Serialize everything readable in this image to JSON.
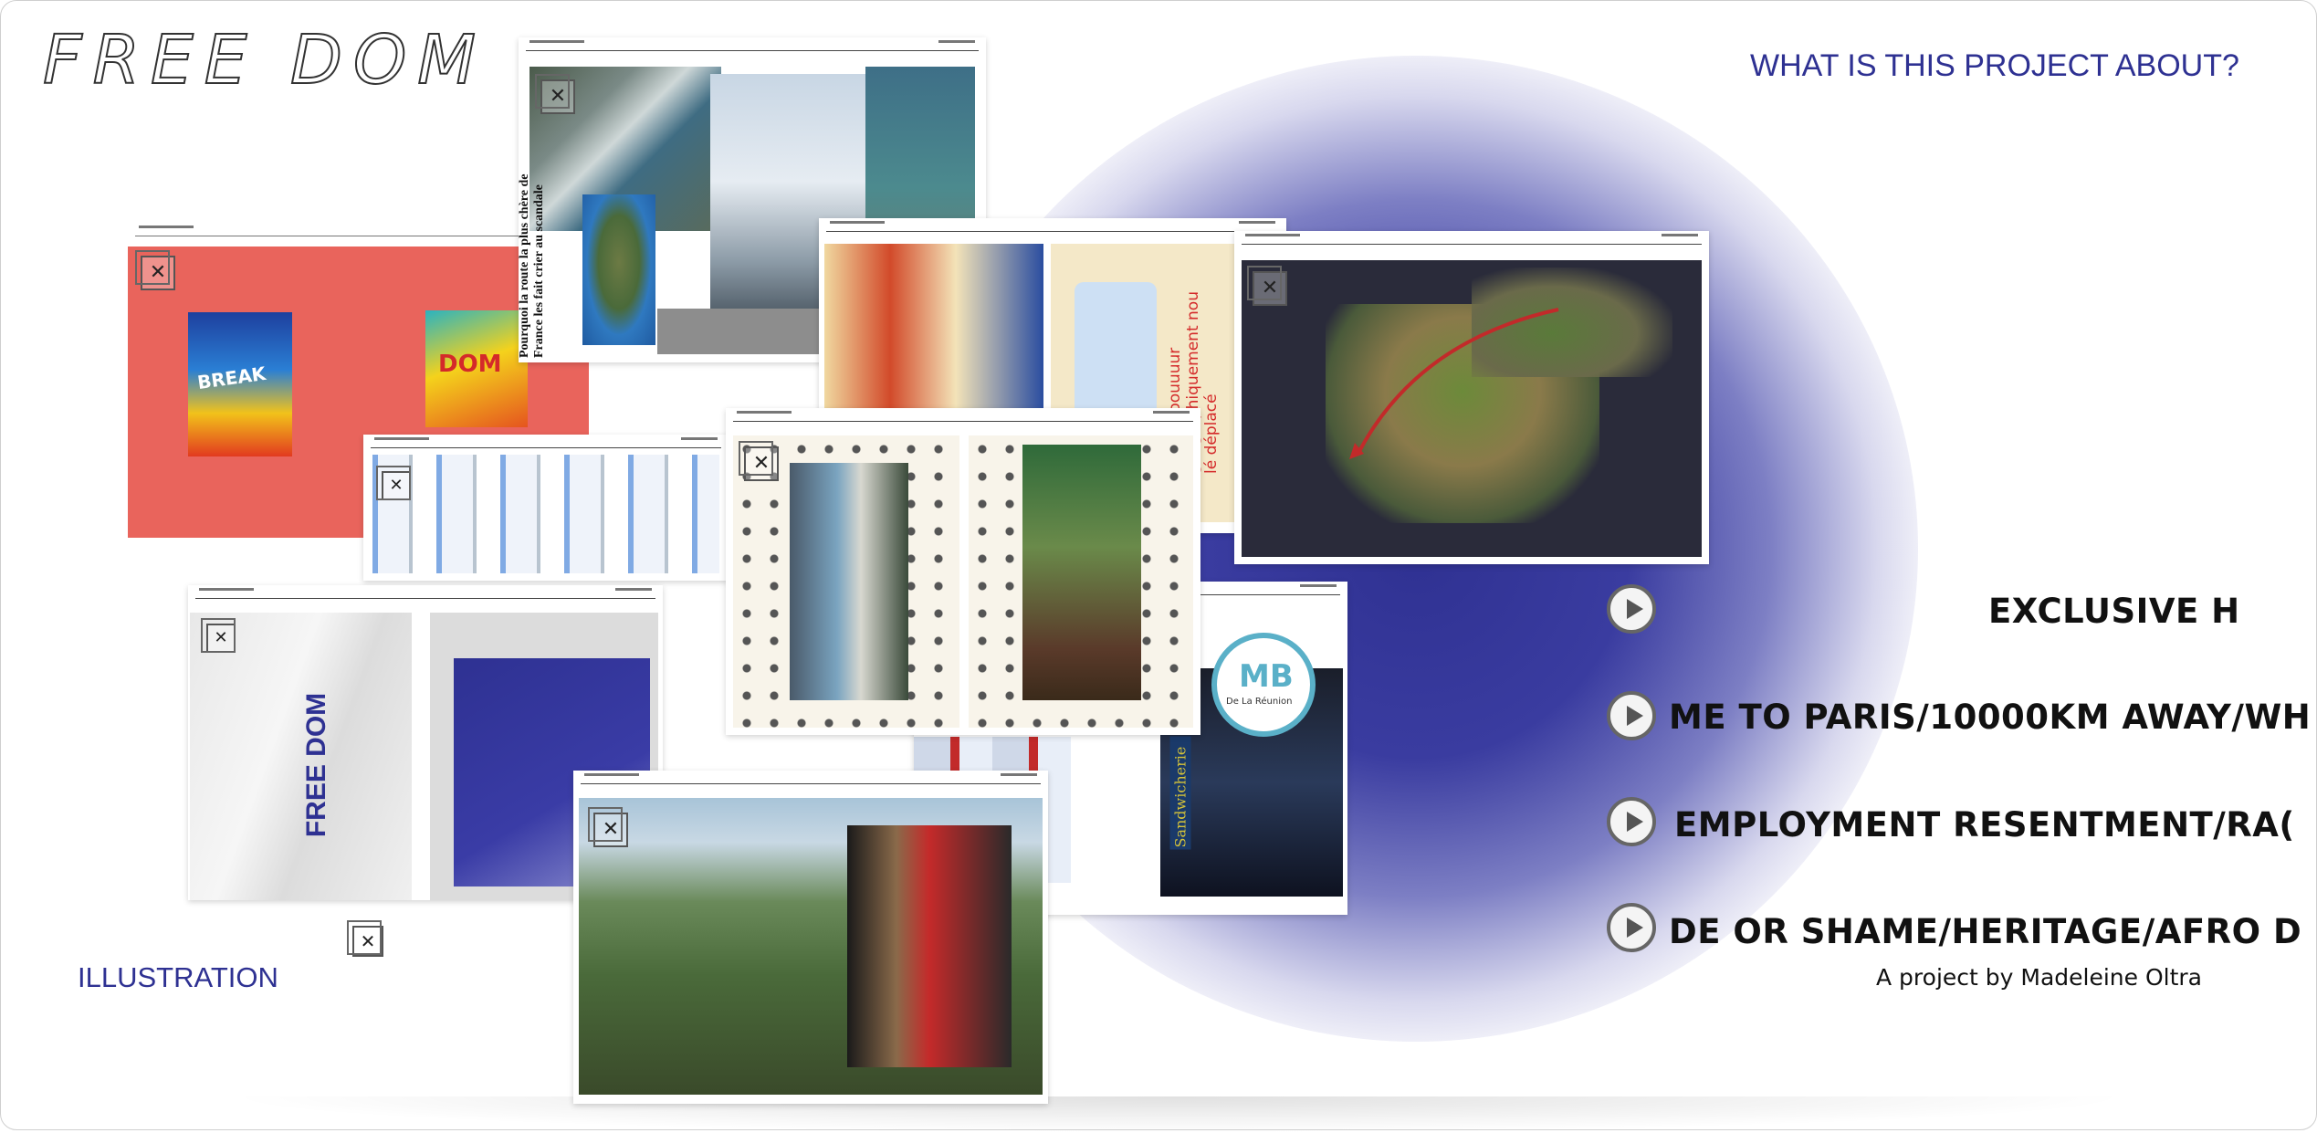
{
  "header": {
    "logo_text": "FREE DOM",
    "about_link": "WHAT IS THIS PROJECT ABOUT?"
  },
  "footer": {
    "illustration_label": "ILLUSTRATION",
    "credit": "A project by Madeleine Oltra"
  },
  "topics": [
    {
      "label": "EXCLUSIVE H"
    },
    {
      "label": "ME TO PARIS/10000KM AWAY/WH"
    },
    {
      "label": "EMPLOYMENT RESENTMENT/RA("
    },
    {
      "label": "DE OR SHAME/HERITAGE/AFRO D"
    }
  ],
  "cards": {
    "flyers": {
      "flyer1_title": "BREAK",
      "flyer2_title": "DOM"
    },
    "road_article": {
      "headline": "Pourquoi la route la plus chère de France les fait crier au scandale"
    },
    "map_lesson": {
      "caption": "O'skooooouuuur géographiquement nou lé déplacé"
    },
    "bag": {
      "print": "FREE DOM"
    },
    "badge": {
      "letters": "MB",
      "sub": "De La Réunion"
    },
    "sandwich": {
      "text": "Sandwicherie"
    }
  },
  "colors": {
    "accent": "#2e3192",
    "coral": "#e9645c",
    "glow": "#2f3192"
  },
  "icons": [
    "close-icon",
    "play-icon"
  ]
}
